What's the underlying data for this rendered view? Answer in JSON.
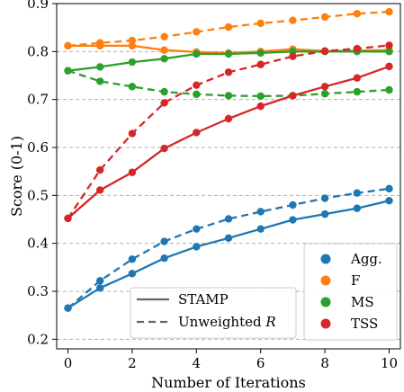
{
  "chart_data": {
    "type": "line",
    "title": "",
    "xlabel": "Number of Iterations",
    "ylabel": "Score (0-1)",
    "xlim": [
      -0.35,
      10.35
    ],
    "ylim": [
      0.18,
      0.9
    ],
    "xticks": [
      0,
      2,
      4,
      6,
      8,
      10
    ],
    "yticks": [
      0.2,
      0.3,
      0.4,
      0.5,
      0.6,
      0.7,
      0.8,
      0.9
    ],
    "xtick_labels": [
      "0",
      "2",
      "4",
      "6",
      "8",
      "10"
    ],
    "ytick_labels": [
      "0.2",
      "0.3",
      "0.4",
      "0.5",
      "0.6",
      "0.7",
      "0.8",
      "0.9"
    ],
    "grid": "horizontal dashed",
    "x": [
      0,
      1,
      2,
      3,
      4,
      5,
      6,
      7,
      8,
      9,
      10
    ],
    "series": [
      {
        "metric": "Agg.",
        "method": "STAMP",
        "color": "#1f77b4",
        "style": "solid",
        "values": [
          0.265,
          0.307,
          0.337,
          0.369,
          0.393,
          0.411,
          0.43,
          0.449,
          0.461,
          0.473,
          0.489
        ]
      },
      {
        "metric": "Agg.",
        "method": "Unweighted R",
        "color": "#1f77b4",
        "style": "dashed",
        "values": [
          0.265,
          0.322,
          0.367,
          0.404,
          0.43,
          0.451,
          0.466,
          0.48,
          0.494,
          0.505,
          0.514
        ]
      },
      {
        "metric": "F",
        "method": "STAMP",
        "color": "#ff7f0e",
        "style": "solid",
        "values": [
          0.812,
          0.812,
          0.812,
          0.803,
          0.799,
          0.797,
          0.8,
          0.805,
          0.801,
          0.802,
          0.803
        ]
      },
      {
        "metric": "F",
        "method": "Unweighted R",
        "color": "#ff7f0e",
        "style": "dashed",
        "values": [
          0.812,
          0.818,
          0.823,
          0.831,
          0.841,
          0.851,
          0.859,
          0.865,
          0.872,
          0.879,
          0.883
        ]
      },
      {
        "metric": "MS",
        "method": "STAMP",
        "color": "#2ca02c",
        "style": "solid",
        "values": [
          0.76,
          0.768,
          0.778,
          0.785,
          0.795,
          0.795,
          0.797,
          0.8,
          0.8,
          0.8,
          0.8
        ]
      },
      {
        "metric": "MS",
        "method": "Unweighted R",
        "color": "#2ca02c",
        "style": "dashed",
        "values": [
          0.76,
          0.738,
          0.727,
          0.716,
          0.711,
          0.708,
          0.707,
          0.708,
          0.712,
          0.716,
          0.72
        ]
      },
      {
        "metric": "TSS",
        "method": "STAMP",
        "color": "#d62728",
        "style": "solid",
        "values": [
          0.452,
          0.511,
          0.548,
          0.598,
          0.631,
          0.66,
          0.686,
          0.708,
          0.727,
          0.745,
          0.769
        ]
      },
      {
        "metric": "TSS",
        "method": "Unweighted R",
        "color": "#d62728",
        "style": "dashed",
        "values": [
          0.452,
          0.553,
          0.629,
          0.693,
          0.73,
          0.757,
          0.773,
          0.79,
          0.801,
          0.806,
          0.813
        ]
      }
    ],
    "legend_metrics": [
      {
        "label": "Agg.",
        "color": "#1f77b4"
      },
      {
        "label": "F",
        "color": "#ff7f0e"
      },
      {
        "label": "MS",
        "color": "#2ca02c"
      },
      {
        "label": "TSS",
        "color": "#d62728"
      }
    ],
    "legend_methods": [
      {
        "label": "STAMP",
        "style": "solid",
        "color": "#666666"
      },
      {
        "label": "Unweighted ",
        "label_math": "R",
        "style": "dashed",
        "color": "#666666"
      }
    ],
    "legend_metrics_position": "lower-right",
    "legend_methods_position": "lower-center"
  }
}
